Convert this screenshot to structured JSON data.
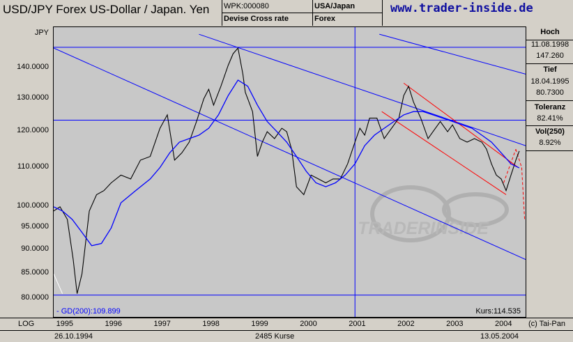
{
  "header": {
    "title": "USD/JPY Forex US-Dollar / Japan. Yen",
    "wpk": "WPK:000080",
    "subtitle": "Devise Cross rate",
    "region": "USA/Japan",
    "category": "Forex",
    "site": "www.trader-inside.de"
  },
  "sidebar": {
    "hoch_label": "Hoch",
    "hoch_date": "11.08.1998",
    "hoch_value": "147.260",
    "tief_label": "Tief",
    "tief_date": "18.04.1995",
    "tief_value": "80.7300",
    "toleranz_label": "Toleranz",
    "toleranz_value": "82.41%",
    "vol_label": "Vol(250)",
    "vol_value": "8.92%"
  },
  "footer": {
    "scale": "LOG",
    "start_date": "26.10.1994",
    "count": "2485 Kurse",
    "end_date": "13.05.2004",
    "copyright": "(c) Tai-Pan"
  },
  "watermark": "TRADERINSIDE",
  "colors": {
    "price": "#000000",
    "ma": "#0000ff",
    "trend": "#0000ff",
    "channel": "#ff0000",
    "plot_bg": "#c8c8c8"
  },
  "chart_data": {
    "type": "line",
    "scale": "log",
    "ylabel": "JPY",
    "ylim": [
      80,
      150
    ],
    "xlim": [
      1994.82,
      2004.5
    ],
    "yticks": [
      "140.0000",
      "130.0000",
      "120.0000",
      "110.0000",
      "100.0000",
      "95.0000",
      "90.0000",
      "85.0000",
      "80.0000"
    ],
    "ytick_values": [
      140,
      130,
      120,
      110,
      100,
      95,
      90,
      85,
      80
    ],
    "xticks": [
      "1995",
      "1996",
      "1997",
      "1998",
      "1999",
      "2000",
      "2001",
      "2002",
      "2003",
      "2004"
    ],
    "xtick_values": [
      1995,
      1996,
      1997,
      1998,
      1999,
      2000,
      2001,
      2002,
      2003,
      2004
    ],
    "ma_label": "- GD(200):109.899",
    "last_label": "Kurs:114.535",
    "series": [
      {
        "kind": "price",
        "x": [
          1994.82,
          1994.95,
          1995.1,
          1995.22,
          1995.3,
          1995.4,
          1995.55,
          1995.7,
          1995.85,
          1996.0,
          1996.2,
          1996.4,
          1996.6,
          1996.8,
          1997.0,
          1997.15,
          1997.3,
          1997.45,
          1997.6,
          1997.75,
          1997.9,
          1998.0,
          1998.1,
          1998.25,
          1998.4,
          1998.5,
          1998.6,
          1998.7,
          1998.75,
          1998.8,
          1998.9,
          1999.0,
          1999.1,
          1999.2,
          1999.35,
          1999.5,
          1999.6,
          1999.7,
          1999.8,
          1999.95,
          2000.1,
          2000.25,
          2000.4,
          2000.55,
          2000.7,
          2000.85,
          2001.0,
          2001.1,
          2001.2,
          2001.3,
          2001.45,
          2001.6,
          2001.7,
          2001.8,
          2001.9,
          2002.0,
          2002.1,
          2002.2,
          2002.35,
          2002.5,
          2002.6,
          2002.75,
          2002.9,
          2003.0,
          2003.15,
          2003.3,
          2003.45,
          2003.6,
          2003.7,
          2003.8,
          2003.9,
          2004.0,
          2004.1,
          2004.2,
          2004.3,
          2004.37
        ],
        "y": [
          99,
          100,
          97,
          88,
          81,
          85,
          99,
          103,
          104,
          106,
          108,
          107,
          112,
          113,
          121,
          125,
          112,
          114,
          117,
          123,
          130,
          133,
          128,
          134,
          141,
          145,
          147,
          138,
          132,
          130,
          126,
          113,
          117,
          120,
          118,
          121,
          120,
          115,
          105,
          103,
          108,
          107,
          106,
          107,
          107,
          111,
          117,
          121,
          119,
          124,
          124,
          118,
          120,
          122,
          124,
          131,
          134,
          129,
          124,
          118,
          120,
          123,
          120,
          122,
          118,
          117,
          118,
          117,
          115,
          111,
          108,
          107,
          104,
          108,
          112,
          114.5
        ]
      },
      {
        "kind": "ma",
        "name": "GD(200)",
        "x": [
          1994.82,
          1995.0,
          1995.2,
          1995.4,
          1995.6,
          1995.8,
          1996.0,
          1996.2,
          1996.5,
          1996.8,
          1997.0,
          1997.2,
          1997.4,
          1997.6,
          1997.8,
          1998.0,
          1998.2,
          1998.4,
          1998.6,
          1998.8,
          1999.0,
          1999.2,
          1999.4,
          1999.6,
          1999.8,
          2000.0,
          2000.2,
          2000.4,
          2000.6,
          2000.8,
          2001.0,
          2001.2,
          2001.4,
          2001.6,
          2001.8,
          2002.0,
          2002.2,
          2002.4,
          2002.6,
          2002.8,
          2003.0,
          2003.2,
          2003.4,
          2003.6,
          2003.8,
          2004.0,
          2004.2,
          2004.37
        ],
        "y": [
          100,
          99,
          97,
          94,
          91,
          91.5,
          95,
          101,
          104,
          107,
          110,
          114,
          117,
          118,
          119,
          121,
          125,
          131,
          136,
          134,
          128,
          123,
          120,
          117,
          113,
          109,
          106,
          105,
          106,
          108,
          111,
          116,
          119,
          121,
          123,
          125,
          126,
          126,
          125,
          124,
          123,
          122,
          121,
          119,
          117,
          114,
          111,
          109.9
        ]
      }
    ]
  }
}
